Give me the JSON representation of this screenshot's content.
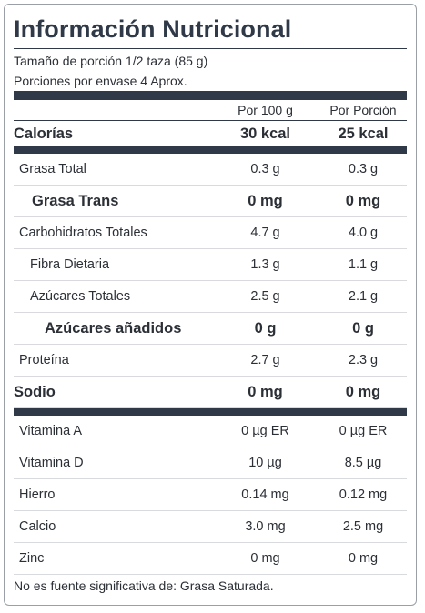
{
  "title": "Información Nutricional",
  "serving_size": "Tamaño de porción 1/2 taza (85 g)",
  "servings_per_container": "Porciones por envase 4 Aprox.",
  "columns": {
    "per100": "Por 100 g",
    "perServing": "Por Porción"
  },
  "calories": {
    "label": "Calorías",
    "per100": "30 kcal",
    "perServing": "25 kcal"
  },
  "nutrients": [
    {
      "label": "Grasa Total",
      "per100": "0.3 g",
      "perServing": "0.3 g"
    },
    {
      "label": "Grasa Trans",
      "per100": "0 mg",
      "perServing": "0 mg"
    },
    {
      "label": "Carbohidratos Totales",
      "per100": "4.7 g",
      "perServing": "4.0 g"
    },
    {
      "label": "Fibra Dietaria",
      "per100": "1.3 g",
      "perServing": "1.1 g"
    },
    {
      "label": "Azúcares Totales",
      "per100": "2.5 g",
      "perServing": "2.1 g"
    },
    {
      "label": "Azúcares añadidos",
      "per100": "0 g",
      "perServing": "0 g"
    },
    {
      "label": "Proteína",
      "per100": "2.7 g",
      "perServing": "2.3 g"
    },
    {
      "label": "Sodio",
      "per100": "0 mg",
      "perServing": "0 mg"
    }
  ],
  "vitamins": [
    {
      "label": "Vitamina A",
      "per100": "0 µg ER",
      "perServing": "0 µg ER"
    },
    {
      "label": "Vitamina D",
      "per100": "10 µg",
      "perServing": "8.5 µg"
    },
    {
      "label": "Hierro",
      "per100": "0.14 mg",
      "perServing": "0.12 mg"
    },
    {
      "label": "Calcio",
      "per100": "3.0 mg",
      "perServing": "2.5 mg"
    },
    {
      "label": "Zinc",
      "per100": "0 mg",
      "perServing": "0 mg"
    }
  ],
  "footer": "No es fuente significativa de: Grasa Saturada.",
  "colors": {
    "dark": "#2f3947",
    "divider": "#d8dadd",
    "border": "#9aa0a6"
  }
}
